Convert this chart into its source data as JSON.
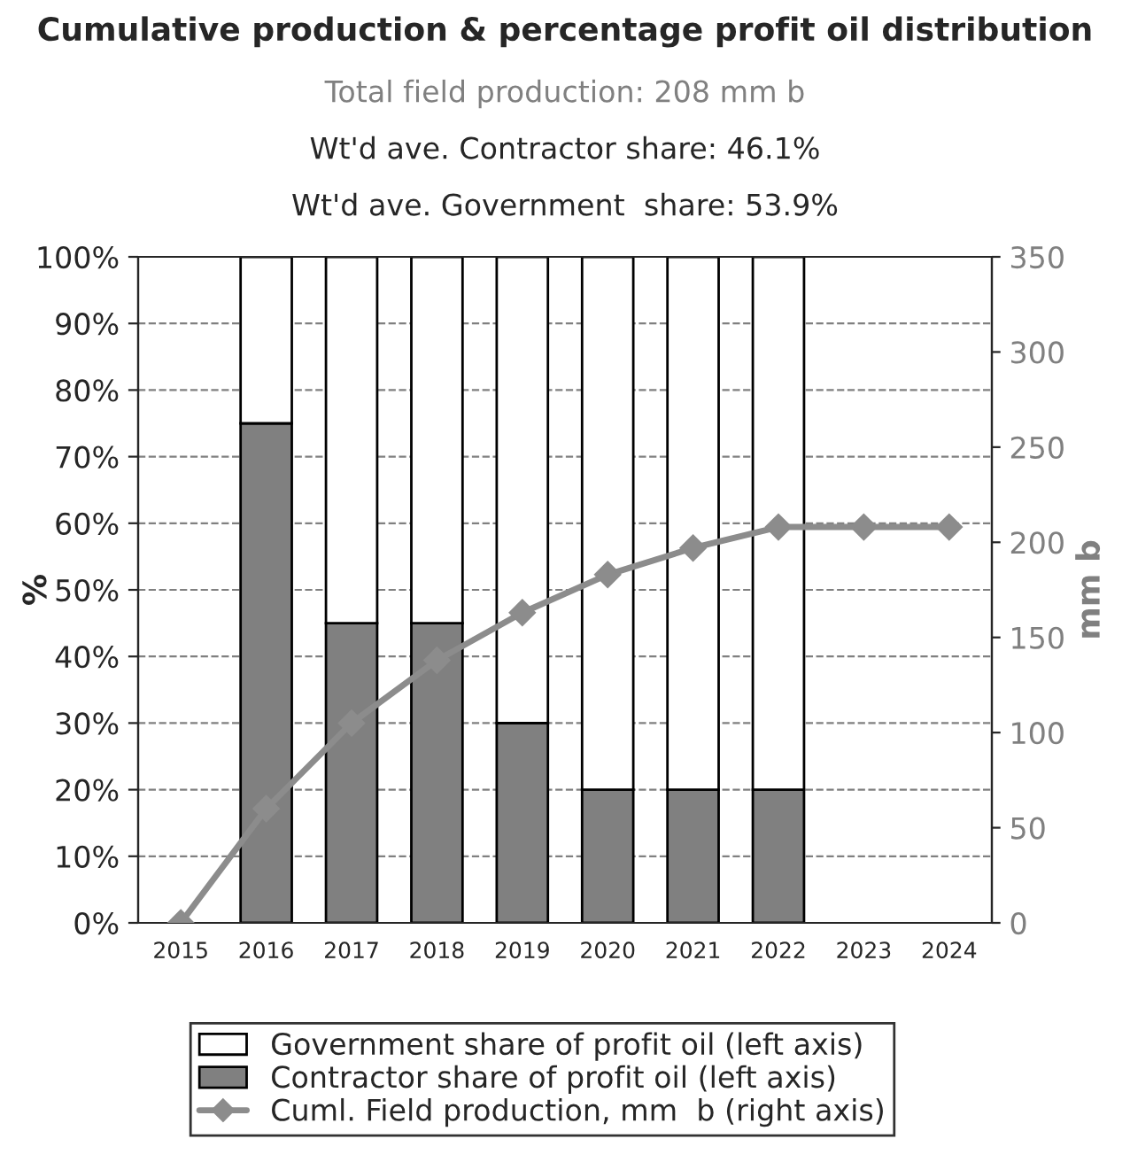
{
  "chart_data": {
    "type": "bar",
    "title": "Cumulative production & percentage profit oil distribution",
    "subtitle": "Total field production: 208 mm b",
    "annotations": [
      "Wt'd ave. Contractor share: 46.1%",
      "Wt'd ave. Government  share: 53.9%"
    ],
    "categories": [
      "2015",
      "2016",
      "2017",
      "2018",
      "2019",
      "2020",
      "2021",
      "2022",
      "2023",
      "2024"
    ],
    "stacked": true,
    "series": [
      {
        "name": "Contractor share of profit oil (left axis)",
        "color": "#808080",
        "values": [
          null,
          75,
          45,
          45,
          30,
          20,
          20,
          20,
          null,
          null
        ]
      },
      {
        "name": "Government share of profit oil (left axis)",
        "color": "#ffffff",
        "values": [
          null,
          25,
          55,
          55,
          70,
          80,
          80,
          80,
          null,
          null
        ]
      },
      {
        "name": "Cuml. Field production, mm  b (right axis)",
        "type": "line",
        "axis": "y2",
        "color": "#8c8c8c",
        "marker": "diamond",
        "values": [
          0,
          60,
          105,
          138,
          163,
          183,
          197,
          208,
          208,
          208
        ]
      }
    ],
    "ylabel": "%",
    "y2label": "mm b",
    "ylim": [
      0,
      100
    ],
    "yticks": [
      {
        "value": 0,
        "label": "0%"
      },
      {
        "value": 10,
        "label": "10%"
      },
      {
        "value": 20,
        "label": "20%"
      },
      {
        "value": 30,
        "label": "30%"
      },
      {
        "value": 40,
        "label": "40%"
      },
      {
        "value": 50,
        "label": "50%"
      },
      {
        "value": 60,
        "label": "60%"
      },
      {
        "value": 70,
        "label": "70%"
      },
      {
        "value": 80,
        "label": "80%"
      },
      {
        "value": 90,
        "label": "90%"
      },
      {
        "value": 100,
        "label": "100%"
      }
    ],
    "y2lim": [
      0,
      350
    ],
    "y2ticks": [
      0,
      50,
      100,
      150,
      200,
      250,
      300,
      350
    ],
    "grid": "y",
    "legend": "bottom"
  }
}
